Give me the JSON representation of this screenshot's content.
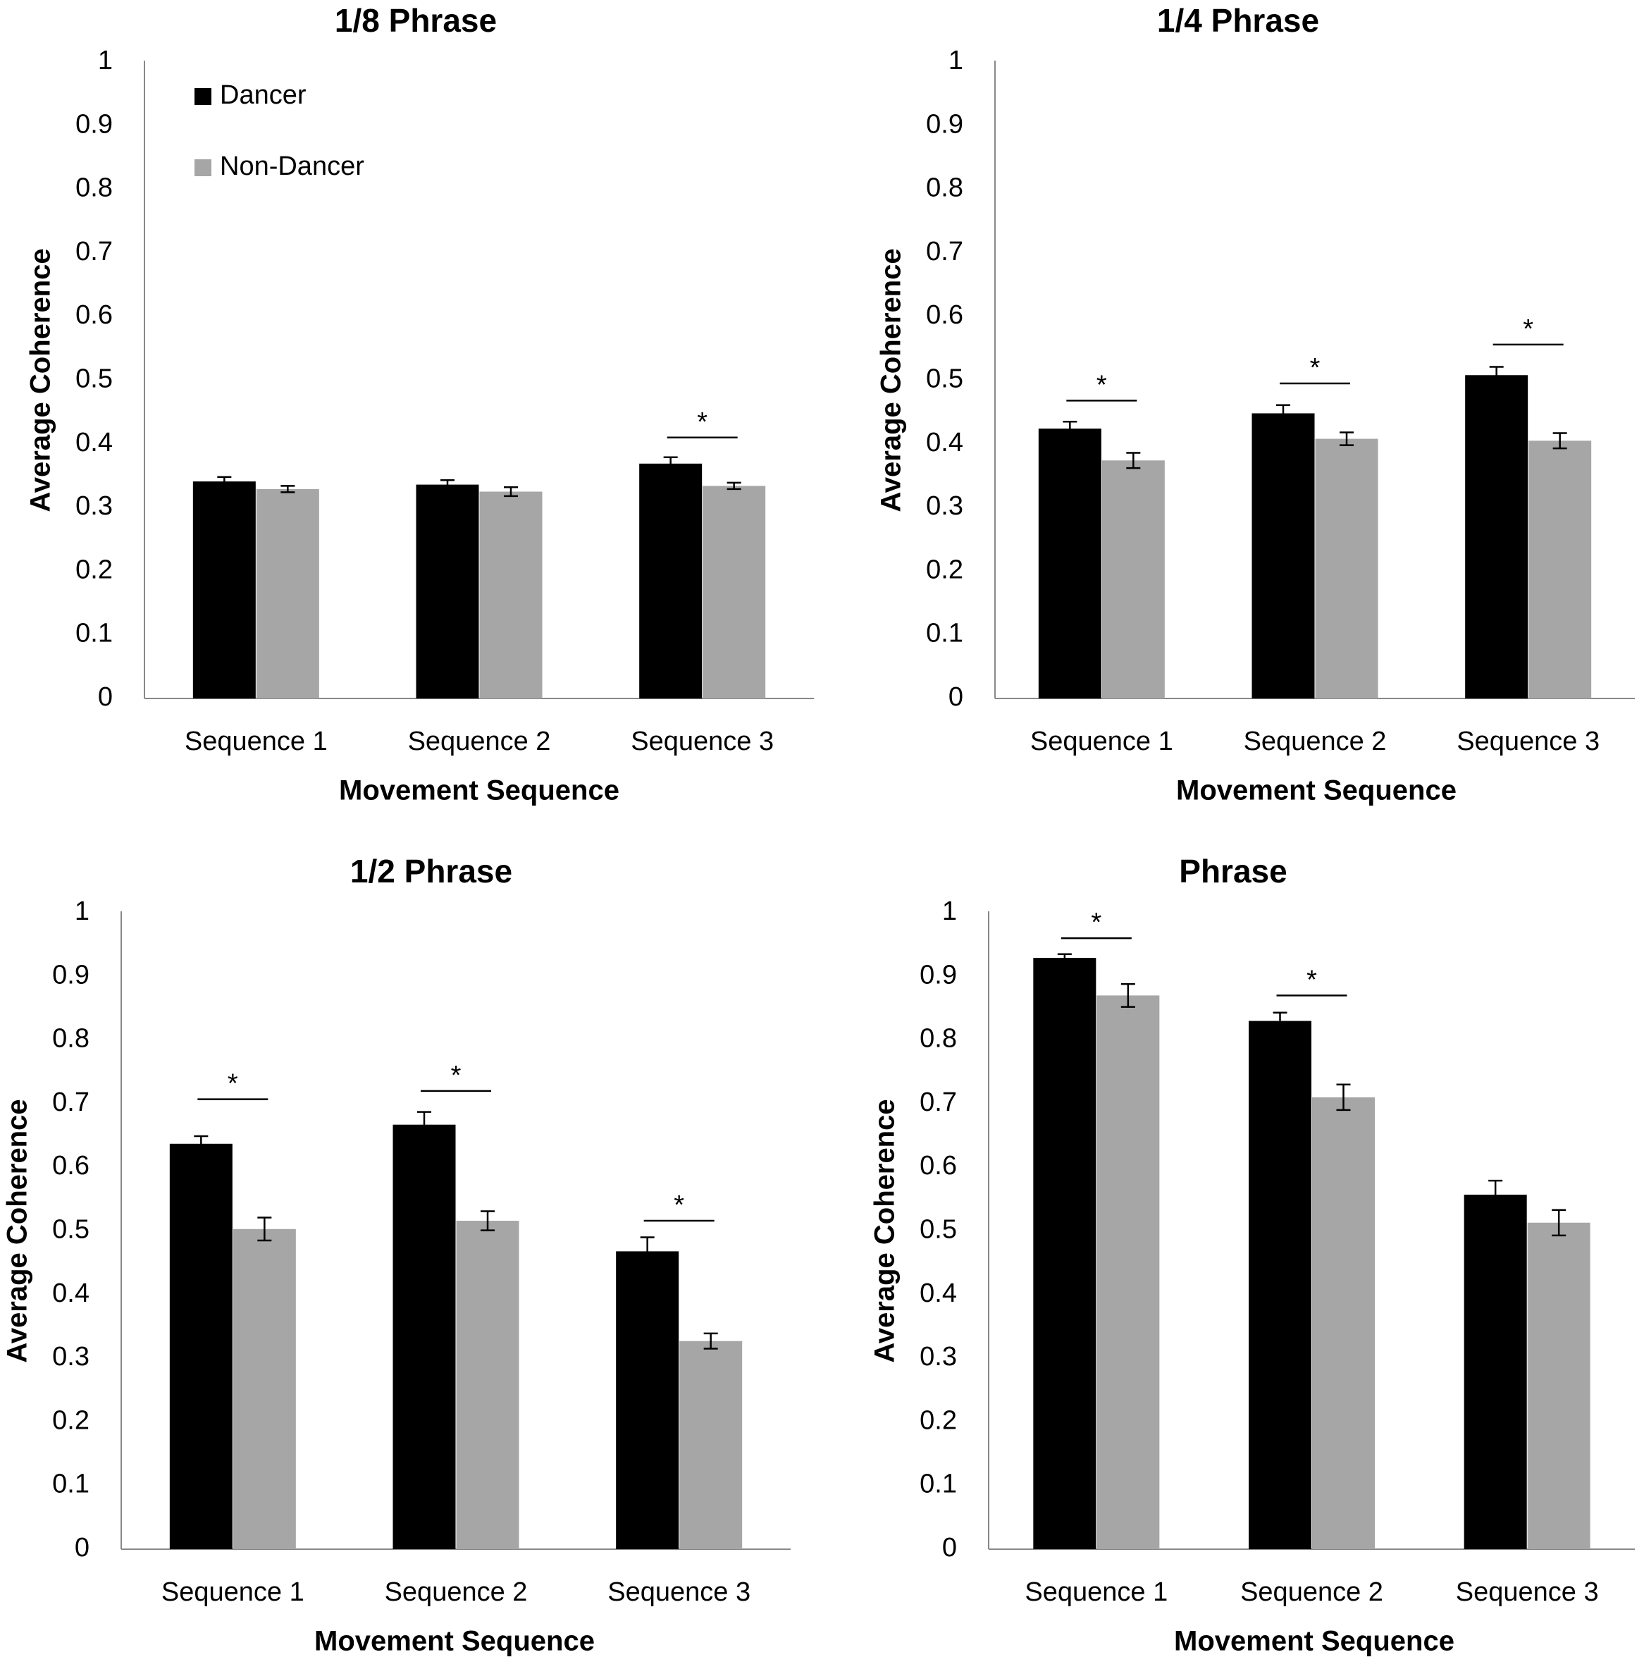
{
  "colors": {
    "dancer": "#000000",
    "non_dancer": "#a6a6a6",
    "axis": "#888888",
    "text": "#000000"
  },
  "legend": {
    "items": [
      {
        "label": "Dancer",
        "color": "#000000"
      },
      {
        "label": "Non-Dancer",
        "color": "#a6a6a6"
      }
    ]
  },
  "chart_data": [
    {
      "type": "bar",
      "title": "1/8 Phrase",
      "xlabel": "Movement Sequence",
      "ylabel": "Average Coherence",
      "ylim": [
        0,
        1
      ],
      "yticks": [
        "0",
        "0.1",
        "0.2",
        "0.3",
        "0.4",
        "0.5",
        "0.6",
        "0.7",
        "0.8",
        "0.9",
        "1"
      ],
      "categories": [
        "Sequence 1",
        "Sequence 2",
        "Sequence 3"
      ],
      "series": [
        {
          "name": "Dancer",
          "values": [
            0.341,
            0.336,
            0.369
          ],
          "errors": [
            0.007,
            0.007,
            0.01
          ]
        },
        {
          "name": "Non-Dancer",
          "values": [
            0.329,
            0.325,
            0.334
          ],
          "errors": [
            0.005,
            0.007,
            0.005
          ]
        }
      ],
      "significance": [
        {
          "category": "Sequence 3",
          "label": "*",
          "level": 0.41
        }
      ]
    },
    {
      "type": "bar",
      "title": "1/4 Phrase",
      "xlabel": "Movement Sequence",
      "ylabel": "Average Coherence",
      "ylim": [
        0,
        1
      ],
      "yticks": [
        "0",
        "0.1",
        "0.2",
        "0.3",
        "0.4",
        "0.5",
        "0.6",
        "0.7",
        "0.8",
        "0.9",
        "1"
      ],
      "categories": [
        "Sequence 1",
        "Sequence 2",
        "Sequence 3"
      ],
      "series": [
        {
          "name": "Dancer",
          "values": [
            0.424,
            0.448,
            0.508
          ],
          "errors": [
            0.011,
            0.013,
            0.013
          ]
        },
        {
          "name": "Non-Dancer",
          "values": [
            0.374,
            0.408,
            0.405
          ],
          "errors": [
            0.012,
            0.01,
            0.012
          ]
        }
      ],
      "significance": [
        {
          "category": "Sequence 1",
          "label": "*",
          "level": 0.468
        },
        {
          "category": "Sequence 2",
          "label": "*",
          "level": 0.495
        },
        {
          "category": "Sequence 3",
          "label": "*",
          "level": 0.556
        }
      ]
    },
    {
      "type": "bar",
      "title": "1/2 Phrase",
      "xlabel": "Movement Sequence",
      "ylabel": "Average Coherence",
      "ylim": [
        0,
        1
      ],
      "yticks": [
        "0",
        "0.1",
        "0.2",
        "0.3",
        "0.4",
        "0.5",
        "0.6",
        "0.7",
        "0.8",
        "0.9",
        "1"
      ],
      "categories": [
        "Sequence 1",
        "Sequence 2",
        "Sequence 3"
      ],
      "series": [
        {
          "name": "Dancer",
          "values": [
            0.637,
            0.667,
            0.468
          ],
          "errors": [
            0.012,
            0.02,
            0.022
          ]
        },
        {
          "name": "Non-Dancer",
          "values": [
            0.503,
            0.516,
            0.327
          ],
          "errors": [
            0.018,
            0.015,
            0.012
          ]
        }
      ],
      "significance": [
        {
          "category": "Sequence 1",
          "label": "*",
          "level": 0.707
        },
        {
          "category": "Sequence 2",
          "label": "*",
          "level": 0.72
        },
        {
          "category": "Sequence 3",
          "label": "*",
          "level": 0.516
        }
      ]
    },
    {
      "type": "bar",
      "title": "Phrase",
      "xlabel": "Movement Sequence",
      "ylabel": "Average Coherence",
      "ylim": [
        0,
        1
      ],
      "yticks": [
        "0",
        "0.1",
        "0.2",
        "0.3",
        "0.4",
        "0.5",
        "0.6",
        "0.7",
        "0.8",
        "0.9",
        "1"
      ],
      "categories": [
        "Sequence 1",
        "Sequence 2",
        "Sequence 3"
      ],
      "series": [
        {
          "name": "Dancer",
          "values": [
            0.929,
            0.83,
            0.557
          ],
          "errors": [
            0.006,
            0.013,
            0.022
          ]
        },
        {
          "name": "Non-Dancer",
          "values": [
            0.87,
            0.71,
            0.513
          ],
          "errors": [
            0.018,
            0.02,
            0.02
          ]
        }
      ],
      "significance": [
        {
          "category": "Sequence 1",
          "label": "*",
          "level": 0.96
        },
        {
          "category": "Sequence 2",
          "label": "*",
          "level": 0.87
        }
      ]
    }
  ]
}
